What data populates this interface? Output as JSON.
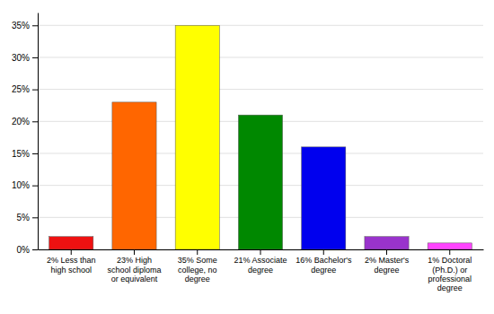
{
  "chart_data": {
    "type": "bar",
    "categories": [
      "2% Less than\nhigh school",
      "23% High\nschool diploma\nor equivalent",
      "35% Some\ncollege, no\ndegree",
      "21% Associate\ndegree",
      "16% Bachelor's\ndegree",
      "2% Master's\ndegree",
      "1% Doctoral\n(Ph.D.) or\nprofessional\ndegree"
    ],
    "values": [
      2,
      23,
      35,
      21,
      16,
      2,
      1
    ],
    "colors": [
      "#ee1111",
      "#ff6600",
      "#ffff00",
      "#008800",
      "#0000ee",
      "#9933cc",
      "#ff44ff"
    ],
    "ylim": [
      0,
      37
    ],
    "yticks": [
      {
        "value": 0,
        "label": "0%"
      },
      {
        "value": 5,
        "label": "5%"
      },
      {
        "value": 10,
        "label": "10%"
      },
      {
        "value": 15,
        "label": "15%"
      },
      {
        "value": 20,
        "label": "20%"
      },
      {
        "value": 25,
        "label": "25%"
      },
      {
        "value": 30,
        "label": "30%"
      },
      {
        "value": 35,
        "label": "35%"
      }
    ],
    "grid": true
  }
}
